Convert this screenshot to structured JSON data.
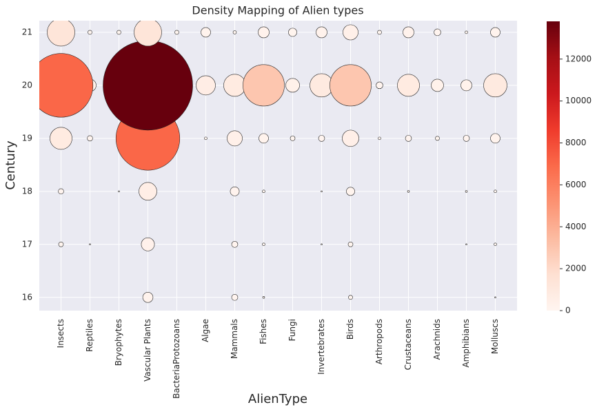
{
  "chart_data": {
    "type": "bubble",
    "title": "Density Mapping of Alien types",
    "x_label": "AlienType",
    "y_label": "Century",
    "categories": [
      "Insects",
      "Reptiles",
      "Bryophytes",
      "Vascular Plants",
      "BacteriaProtozoans",
      "Algae",
      "Mammals",
      "Fishes",
      "Fungi",
      "Invertebrates",
      "Birds",
      "Arthropods",
      "Crustaceans",
      "Arachnids",
      "Amphibians",
      "Molluscs"
    ],
    "points": {
      "x": [
        "Vascular Plants",
        "Mammals",
        "Fishes",
        "Birds",
        "Molluscs",
        "Insects",
        "Reptiles",
        "Vascular Plants",
        "Mammals",
        "Fishes",
        "Invertebrates",
        "Birds",
        "Amphibians",
        "Molluscs",
        "Insects",
        "Bryophytes",
        "Vascular Plants",
        "Mammals",
        "Fishes",
        "Invertebrates",
        "Birds",
        "Crustaceans",
        "Amphibians",
        "Molluscs",
        "Insects",
        "Reptiles",
        "Vascular Plants",
        "Algae",
        "Mammals",
        "Fishes",
        "Fungi",
        "Invertebrates",
        "Birds",
        "Arthropods",
        "Crustaceans",
        "Arachnids",
        "Amphibians",
        "Molluscs",
        "Reptiles",
        "Insects",
        "Vascular Plants",
        "Algae",
        "Mammals",
        "Fishes",
        "Fungi",
        "Invertebrates",
        "Birds",
        "Arthropods",
        "Crustaceans",
        "Arachnids",
        "Amphibians",
        "Molluscs",
        "Insects",
        "Reptiles",
        "Bryophytes",
        "Vascular Plants",
        "BacteriaProtozoans",
        "Algae",
        "Mammals",
        "Fishes",
        "Fungi",
        "Invertebrates",
        "Birds",
        "Arthropods",
        "Crustaceans",
        "Arachnids",
        "Amphibians",
        "Molluscs"
      ],
      "y": [
        16,
        16,
        16,
        16,
        16,
        17,
        17,
        17,
        17,
        17,
        17,
        17,
        17,
        17,
        18,
        18,
        18,
        18,
        18,
        18,
        18,
        18,
        18,
        18,
        19,
        19,
        19,
        19,
        19,
        19,
        19,
        19,
        19,
        19,
        19,
        19,
        19,
        19,
        20,
        20,
        20,
        20,
        20,
        20,
        20,
        20,
        20,
        20,
        20,
        20,
        20,
        20,
        21,
        21,
        21,
        21,
        21,
        21,
        21,
        21,
        21,
        21,
        21,
        21,
        21,
        21,
        21,
        21
      ],
      "sizes": [
        180,
        66,
        7,
        30,
        3,
        40,
        3,
        300,
        66,
        13,
        3,
        40,
        3,
        13,
        50,
        3,
        550,
        140,
        13,
        3,
        120,
        7,
        7,
        13,
        840,
        50,
        7000,
        13,
        400,
        160,
        40,
        66,
        470,
        13,
        66,
        30,
        66,
        160,
        265,
        7000,
        13800,
        640,
        840,
        2950,
        330,
        940,
        2950,
        80,
        840,
        265,
        210,
        940,
        1306,
        30,
        30,
        1300,
        30,
        160,
        20,
        210,
        120,
        210,
        400,
        30,
        210,
        80,
        13,
        160
      ]
    },
    "ylim": [
      15.75,
      21.22
    ],
    "yticks": [
      16,
      17,
      18,
      19,
      20,
      21
    ],
    "colorbar": {
      "lim": [
        0,
        13800
      ],
      "ticks": [
        0,
        2000,
        4000,
        6000,
        8000,
        10000,
        12000
      ]
    },
    "colormap": [
      "#fff5f0",
      "#fee0d2",
      "#fcbba1",
      "#fc9272",
      "#fb6a4a",
      "#ef3b2c",
      "#cb181d",
      "#a50f15",
      "#67000d"
    ],
    "grid": true
  }
}
